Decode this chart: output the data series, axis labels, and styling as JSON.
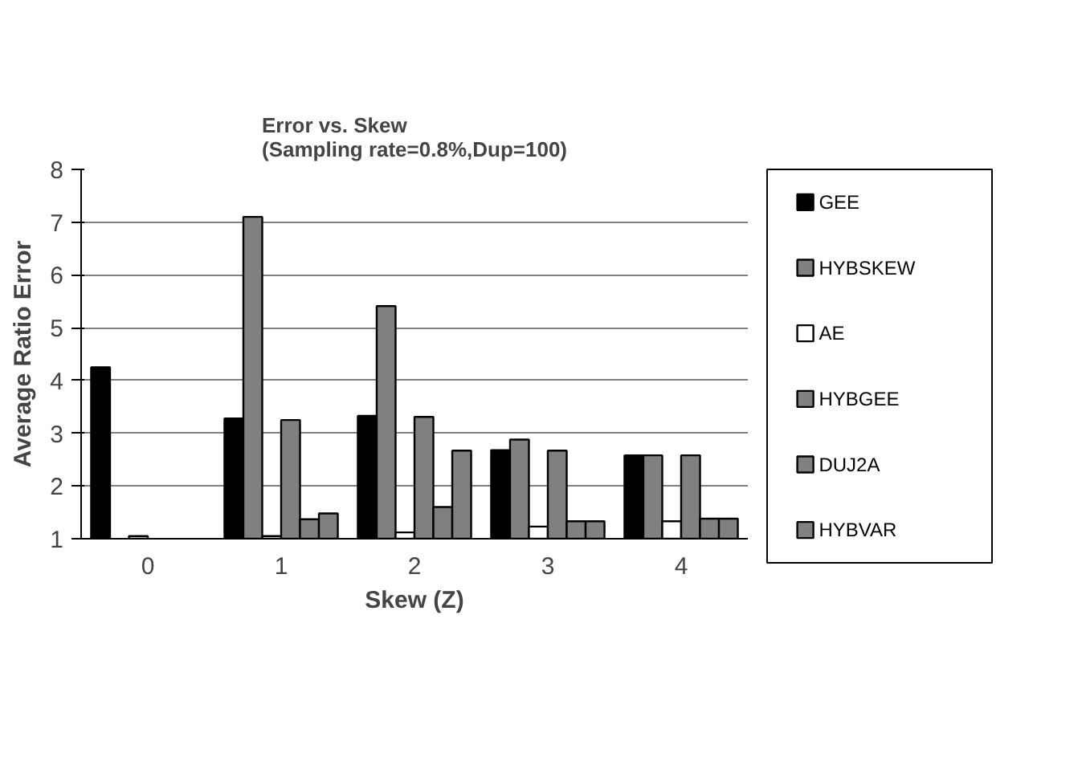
{
  "chart_data": {
    "type": "bar",
    "title": "Error vs. Skew\n(Sampling rate=0.8%,Dup=100)",
    "xlabel": "Skew (Z)",
    "ylabel": "Average Ratio Error",
    "categories": [
      "0",
      "1",
      "2",
      "3",
      "4"
    ],
    "series": [
      {
        "name": "GEE",
        "color": "#000000",
        "values": [
          4.25,
          3.28,
          3.33,
          2.68,
          2.58
        ]
      },
      {
        "name": "HYBSKEW",
        "color": "#808080",
        "values": [
          null,
          7.1,
          5.41,
          2.88,
          2.58
        ]
      },
      {
        "name": "AE",
        "color": "#ffffff",
        "values": [
          1.05,
          1.05,
          1.12,
          1.23,
          1.33
        ]
      },
      {
        "name": "HYBGEE",
        "color": "#808080",
        "values": [
          null,
          3.25,
          3.31,
          2.67,
          2.58
        ]
      },
      {
        "name": "DUJ2A",
        "color": "#808080",
        "values": [
          null,
          1.37,
          1.6,
          1.33,
          1.38
        ]
      },
      {
        "name": "HYBVAR",
        "color": "#808080",
        "values": [
          null,
          1.48,
          2.67,
          1.33,
          1.38
        ]
      }
    ],
    "ylim": [
      1,
      8
    ],
    "yticks": [
      1,
      2,
      3,
      4,
      5,
      6,
      7,
      8
    ],
    "grid": "y",
    "legend": "right"
  }
}
